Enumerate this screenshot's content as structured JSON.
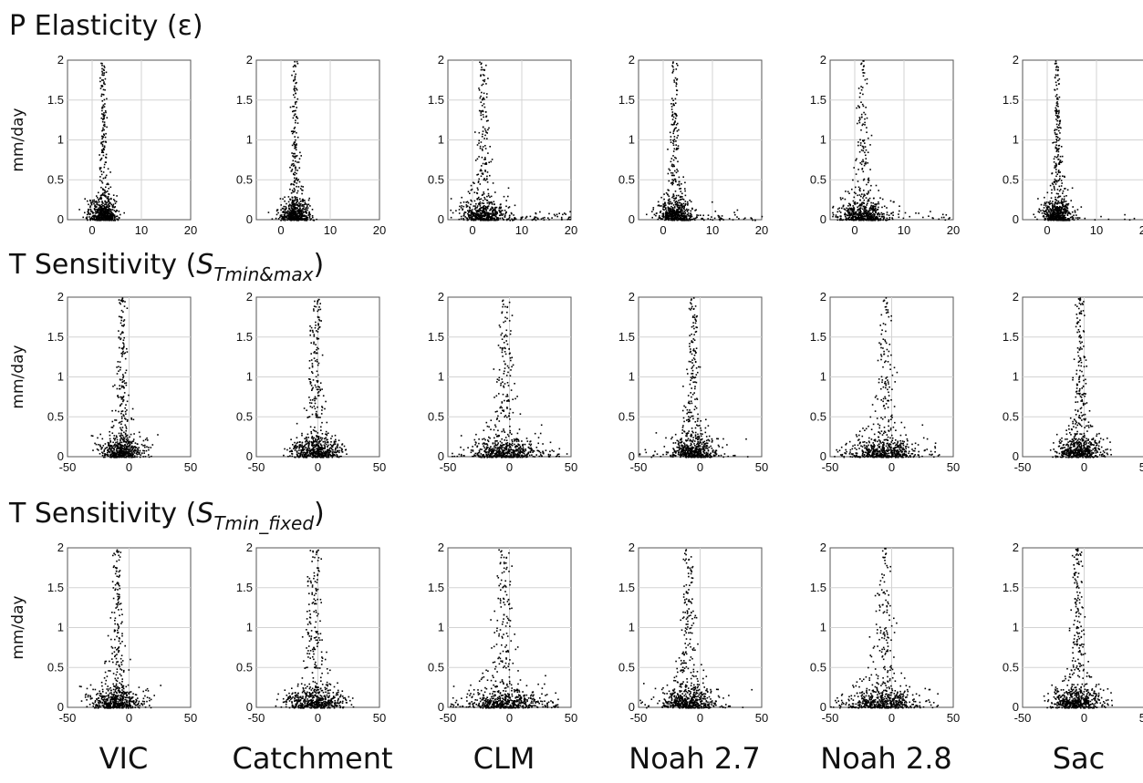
{
  "rows": [
    {
      "title_main": "P Elasticity (ε)",
      "title_sub": "",
      "title_close": ""
    },
    {
      "title_main": "T Sensitivity (",
      "title_base": "S",
      "title_sub": "Tmin&max",
      "title_close": ")"
    },
    {
      "title_main": "T Sensitivity (",
      "title_base": "S",
      "title_sub": "Tmin_fixed",
      "title_close": ")"
    }
  ],
  "ylabel": "mm/day",
  "columns": [
    "VIC",
    "Catchment",
    "CLM",
    "Noah 2.7",
    "Noah 2.8",
    "Sac"
  ],
  "chart_data": [
    {
      "type": "scatter",
      "row": 0,
      "title": "P Elasticity (ε)",
      "ylabel": "mm/day",
      "xlim": [
        -5,
        20
      ],
      "ylim": [
        0,
        2
      ],
      "xticks": [
        0,
        10,
        20
      ],
      "xtick_labels": [
        "0",
        "10",
        "20"
      ],
      "yticks": [
        0,
        0.5,
        1,
        1.5,
        2
      ],
      "ytick_labels": [
        "0",
        "0.5",
        "1",
        "1.5",
        "2"
      ],
      "grid": true,
      "panels": [
        {
          "name": "VIC",
          "center": 2.0,
          "spread": 1.4,
          "extra_tail": 0
        },
        {
          "name": "Catchment",
          "center": 2.6,
          "spread": 1.4,
          "extra_tail": 0
        },
        {
          "name": "CLM",
          "center": 1.9,
          "spread": 2.5,
          "extra_tail": 1
        },
        {
          "name": "Noah 2.7",
          "center": 2.1,
          "spread": 1.8,
          "extra_tail": 0.5
        },
        {
          "name": "Noah 2.8",
          "center": 1.5,
          "spread": 2.6,
          "extra_tail": 0.6
        },
        {
          "name": "Sac",
          "center": 1.8,
          "spread": 1.5,
          "extra_tail": 0.2
        }
      ]
    },
    {
      "type": "scatter",
      "row": 1,
      "title": "T Sensitivity (STmin&max)",
      "ylabel": "mm/day",
      "xlim": [
        -50,
        50
      ],
      "ylim": [
        0,
        2
      ],
      "xticks": [
        -50,
        0,
        50
      ],
      "xtick_labels": [
        "-50",
        "0",
        "50"
      ],
      "yticks": [
        0,
        0.5,
        1,
        1.5,
        2
      ],
      "ytick_labels": [
        "0",
        "0.5",
        "1",
        "1.5",
        "2"
      ],
      "grid": true,
      "panels": [
        {
          "name": "VIC",
          "center": -6,
          "spread": 9,
          "extra_tail": 0
        },
        {
          "name": "Catchment",
          "center": -2,
          "spread": 10,
          "extra_tail": 0
        },
        {
          "name": "CLM",
          "center": -4,
          "spread": 14,
          "extra_tail": 1
        },
        {
          "name": "Noah 2.7",
          "center": -6,
          "spread": 10,
          "extra_tail": 0.3
        },
        {
          "name": "Noah 2.8",
          "center": -5,
          "spread": 14,
          "extra_tail": 0.5
        },
        {
          "name": "Sac",
          "center": -4,
          "spread": 9,
          "extra_tail": 0
        }
      ]
    },
    {
      "type": "scatter",
      "row": 2,
      "title": "T Sensitivity (STmin_fixed)",
      "ylabel": "mm/day",
      "xlim": [
        -50,
        50
      ],
      "ylim": [
        0,
        2
      ],
      "xticks": [
        -50,
        0,
        50
      ],
      "xtick_labels": [
        "-50",
        "0",
        "50"
      ],
      "yticks": [
        0,
        0.5,
        1,
        1.5,
        2
      ],
      "ytick_labels": [
        "0",
        "0.5",
        "1",
        "1.5",
        "2"
      ],
      "grid": true,
      "panels": [
        {
          "name": "VIC",
          "center": -10,
          "spread": 11,
          "extra_tail": 0
        },
        {
          "name": "Catchment",
          "center": -3,
          "spread": 12,
          "extra_tail": 0
        },
        {
          "name": "CLM",
          "center": -5,
          "spread": 16,
          "extra_tail": 1
        },
        {
          "name": "Noah 2.7",
          "center": -10,
          "spread": 12,
          "extra_tail": 0.3
        },
        {
          "name": "Noah 2.8",
          "center": -6,
          "spread": 15,
          "extra_tail": 0.5
        },
        {
          "name": "Sac",
          "center": -6,
          "spread": 10,
          "extra_tail": 0
        }
      ]
    }
  ]
}
